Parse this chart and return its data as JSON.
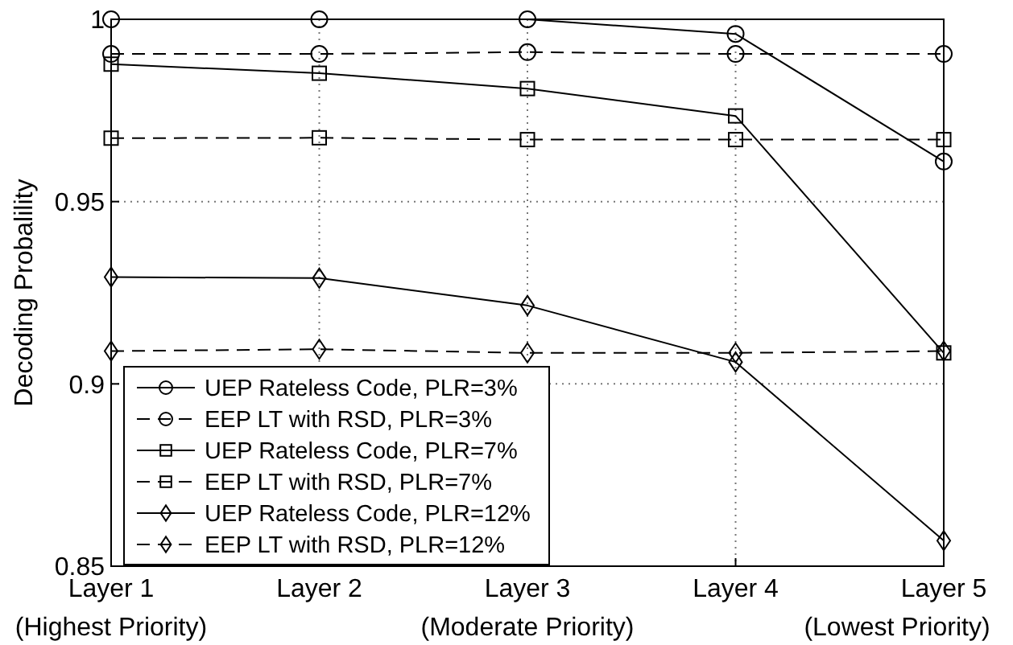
{
  "chart_data": {
    "type": "line",
    "ylabel": "Decoding Probalility",
    "categories": [
      "Layer 1\n(Highest Priority)",
      "Layer 2",
      "Layer 3\n(Moderate Priority)",
      "Layer 4",
      "Layer 5\n(Lowest Priority)"
    ],
    "ylim": [
      0.85,
      1
    ],
    "yticks": [
      0.85,
      0.9,
      0.95,
      1
    ],
    "grid": true,
    "legend": "bottom left",
    "series": [
      {
        "name": "UEP Rateless Code, PLR=3%",
        "color": "#000000",
        "marker": "circle",
        "line_style": "solid",
        "values": [
          1,
          1,
          1,
          0.996,
          0.961
        ]
      },
      {
        "name": "EEP LT with RSD, PLR=3%",
        "color": "#000000",
        "marker": "circle",
        "line_style": "dashed",
        "values": [
          0.9905,
          0.9905,
          0.991,
          0.9905,
          0.9905
        ]
      },
      {
        "name": "UEP Rateless Code, PLR=7%",
        "color": "#000000",
        "marker": "square",
        "line_style": "solid",
        "values": [
          0.9877,
          0.9852,
          0.981,
          0.9735,
          0.9085
        ]
      },
      {
        "name": "EEP LT with RSD, PLR=7%",
        "color": "#000000",
        "marker": "square",
        "line_style": "dashed",
        "values": [
          0.9674,
          0.9675,
          0.967,
          0.967,
          0.967
        ]
      },
      {
        "name": "UEP Rateless Code, PLR=12%",
        "color": "#000000",
        "marker": "diamond",
        "line_style": "solid",
        "values": [
          0.9293,
          0.929,
          0.9215,
          0.906,
          0.857
        ]
      },
      {
        "name": "EEP LT with RSD, PLR=12%",
        "color": "#000000",
        "marker": "diamond",
        "line_style": "dashed",
        "values": [
          0.909,
          0.9095,
          0.9085,
          0.9085,
          0.909
        ]
      }
    ]
  }
}
